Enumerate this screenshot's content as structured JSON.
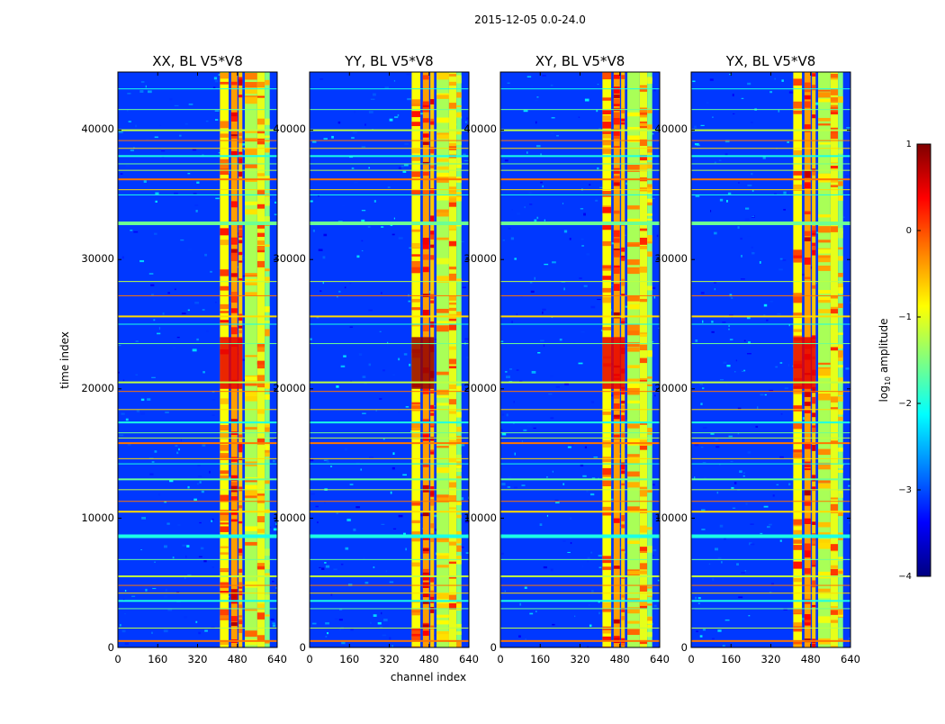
{
  "chart_data": {
    "type": "heatmap",
    "suptitle": "2015-12-05 0.0-24.0",
    "xlabel": "channel index",
    "ylabel": "time index",
    "xlim": [
      0,
      640
    ],
    "ylim": [
      0,
      44500
    ],
    "xticks": [
      "0",
      "160",
      "320",
      "480",
      "640"
    ],
    "yticks": [
      "0",
      "10000",
      "20000",
      "30000",
      "40000"
    ],
    "panels": [
      {
        "title": "XX, BL V5*V8",
        "pol": "XX"
      },
      {
        "title": "YY, BL V5*V8",
        "pol": "YY"
      },
      {
        "title": "XY, BL V5*V8",
        "pol": "XY"
      },
      {
        "title": "YX, BL V5*V8",
        "pol": "YX"
      }
    ],
    "rfi_channel_bands": [
      [
        410,
        445
      ],
      [
        455,
        480
      ],
      [
        485,
        500
      ],
      [
        510,
        560
      ],
      [
        560,
        590
      ],
      [
        590,
        610
      ]
    ],
    "rfi_time_rows": [
      500,
      1500,
      3000,
      3600,
      4200,
      4800,
      5500,
      6800,
      8600,
      10500,
      11300,
      12200,
      13000,
      14200,
      14600,
      15800,
      16200,
      16600,
      17400,
      18400,
      19800,
      20500,
      23500,
      25000,
      25600,
      27200,
      28300,
      32800,
      35000,
      35400,
      36200,
      36900,
      37400,
      38000,
      38600,
      39200,
      40000,
      41600,
      43200
    ],
    "colorbar": {
      "label": "log",
      "label_sub": "10",
      "label_rest": " amplitude",
      "range": [
        -4,
        1
      ],
      "ticks": [
        "1",
        "0",
        "−1",
        "−2",
        "−3",
        "−4"
      ],
      "colormap": "jet",
      "colors": [
        "#000080",
        "#0000ff",
        "#0080ff",
        "#00ffff",
        "#80ff80",
        "#ffff00",
        "#ff8000",
        "#ff0000",
        "#800000"
      ]
    }
  }
}
